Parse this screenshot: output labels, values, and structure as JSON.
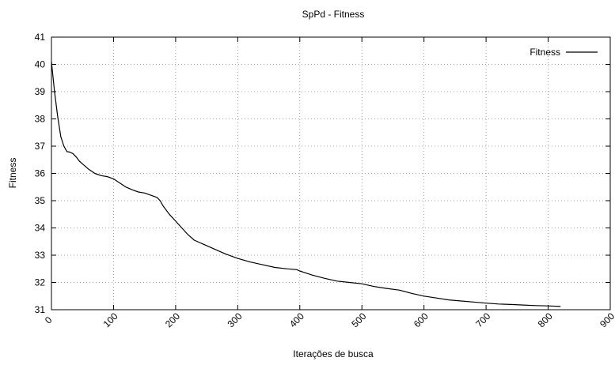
{
  "chart_data": {
    "type": "line",
    "title": "SpPd - Fitness",
    "xlabel": "Iterações de busca",
    "ylabel": "Fitness",
    "xlim": [
      0,
      900
    ],
    "ylim": [
      31,
      41
    ],
    "x_ticks": [
      "0",
      "100",
      "200",
      "300",
      "400",
      "500",
      "600",
      "700",
      "800",
      "900"
    ],
    "y_ticks": [
      "31",
      "32",
      "33",
      "34",
      "35",
      "36",
      "37",
      "38",
      "39",
      "40",
      "41"
    ],
    "grid": true,
    "legend_position": "top-right",
    "series": [
      {
        "name": "Fitness",
        "color": "#000000",
        "x": [
          0,
          5,
          10,
          15,
          20,
          25,
          30,
          35,
          40,
          45,
          50,
          60,
          70,
          80,
          90,
          100,
          110,
          120,
          130,
          140,
          150,
          160,
          170,
          175,
          180,
          190,
          200,
          210,
          220,
          230,
          240,
          250,
          260,
          280,
          300,
          320,
          340,
          360,
          380,
          395,
          400,
          420,
          440,
          460,
          480,
          500,
          520,
          540,
          560,
          580,
          600,
          620,
          640,
          660,
          680,
          700,
          720,
          740,
          760,
          780,
          800,
          820
        ],
        "y": [
          40.1,
          39.0,
          38.1,
          37.35,
          37.0,
          36.8,
          36.78,
          36.72,
          36.6,
          36.45,
          36.35,
          36.15,
          36.0,
          35.92,
          35.88,
          35.8,
          35.65,
          35.5,
          35.4,
          35.32,
          35.28,
          35.2,
          35.12,
          35.0,
          34.8,
          34.5,
          34.25,
          34.0,
          33.75,
          33.55,
          33.45,
          33.35,
          33.25,
          33.05,
          32.88,
          32.75,
          32.65,
          32.55,
          32.5,
          32.47,
          32.42,
          32.27,
          32.15,
          32.05,
          32.0,
          31.95,
          31.85,
          31.78,
          31.72,
          31.6,
          31.5,
          31.43,
          31.36,
          31.32,
          31.28,
          31.24,
          31.21,
          31.19,
          31.17,
          31.15,
          31.14,
          31.12
        ]
      }
    ]
  }
}
